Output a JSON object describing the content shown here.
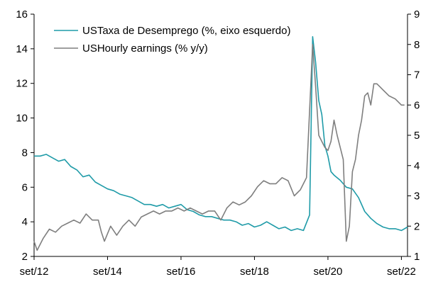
{
  "chart_data": {
    "type": "line",
    "legend_position": "top-left",
    "grid": false,
    "colors": {
      "unemployment": "#1F9BA8",
      "earnings": "#7F7F7F",
      "axis": "#000000"
    },
    "x_axis": {
      "range": [
        2012.667,
        2022.833
      ],
      "ticks": [
        {
          "value": 2012.667,
          "label": "set/12"
        },
        {
          "value": 2014.667,
          "label": "set/14"
        },
        {
          "value": 2016.667,
          "label": "set/16"
        },
        {
          "value": 2018.667,
          "label": "set/18"
        },
        {
          "value": 2020.667,
          "label": "set/20"
        },
        {
          "value": 2022.667,
          "label": "set/22"
        }
      ]
    },
    "y_left": {
      "range": [
        2,
        16
      ],
      "ticks": [
        {
          "value": 2,
          "label": "2"
        },
        {
          "value": 4,
          "label": "4"
        },
        {
          "value": 6,
          "label": "6"
        },
        {
          "value": 8,
          "label": "8"
        },
        {
          "value": 10,
          "label": "10"
        },
        {
          "value": 12,
          "label": "12"
        },
        {
          "value": 14,
          "label": "14"
        },
        {
          "value": 16,
          "label": "16"
        }
      ]
    },
    "y_right": {
      "range": [
        1,
        9
      ],
      "ticks": [
        {
          "value": 1,
          "label": "1"
        },
        {
          "value": 2,
          "label": "2"
        },
        {
          "value": 3,
          "label": "3"
        },
        {
          "value": 4,
          "label": "4"
        },
        {
          "value": 5,
          "label": "5"
        },
        {
          "value": 6,
          "label": "6"
        },
        {
          "value": 7,
          "label": "7"
        },
        {
          "value": 8,
          "label": "8"
        },
        {
          "value": 9,
          "label": "9"
        }
      ]
    },
    "series": [
      {
        "name": "USTaxa de Desemprego (%, eixo esquerdo)",
        "key": "unemployment",
        "axis": "left",
        "points": [
          [
            2012.667,
            7.8
          ],
          [
            2012.833,
            7.8
          ],
          [
            2013.0,
            7.9
          ],
          [
            2013.167,
            7.7
          ],
          [
            2013.333,
            7.5
          ],
          [
            2013.5,
            7.6
          ],
          [
            2013.667,
            7.2
          ],
          [
            2013.833,
            7.0
          ],
          [
            2014.0,
            6.6
          ],
          [
            2014.167,
            6.7
          ],
          [
            2014.333,
            6.3
          ],
          [
            2014.5,
            6.1
          ],
          [
            2014.667,
            5.9
          ],
          [
            2014.833,
            5.8
          ],
          [
            2015.0,
            5.6
          ],
          [
            2015.167,
            5.5
          ],
          [
            2015.333,
            5.4
          ],
          [
            2015.5,
            5.2
          ],
          [
            2015.667,
            5.0
          ],
          [
            2015.833,
            5.0
          ],
          [
            2016.0,
            4.9
          ],
          [
            2016.167,
            5.0
          ],
          [
            2016.333,
            4.8
          ],
          [
            2016.5,
            4.9
          ],
          [
            2016.667,
            5.0
          ],
          [
            2016.833,
            4.7
          ],
          [
            2017.0,
            4.6
          ],
          [
            2017.167,
            4.4
          ],
          [
            2017.333,
            4.3
          ],
          [
            2017.5,
            4.3
          ],
          [
            2017.667,
            4.2
          ],
          [
            2017.833,
            4.1
          ],
          [
            2018.0,
            4.1
          ],
          [
            2018.167,
            4.0
          ],
          [
            2018.333,
            3.8
          ],
          [
            2018.5,
            3.9
          ],
          [
            2018.667,
            3.7
          ],
          [
            2018.833,
            3.8
          ],
          [
            2019.0,
            4.0
          ],
          [
            2019.167,
            3.8
          ],
          [
            2019.333,
            3.6
          ],
          [
            2019.5,
            3.7
          ],
          [
            2019.667,
            3.5
          ],
          [
            2019.833,
            3.6
          ],
          [
            2020.0,
            3.5
          ],
          [
            2020.167,
            4.4
          ],
          [
            2020.25,
            14.7
          ],
          [
            2020.333,
            13.2
          ],
          [
            2020.417,
            11.0
          ],
          [
            2020.5,
            10.2
          ],
          [
            2020.583,
            8.4
          ],
          [
            2020.667,
            7.8
          ],
          [
            2020.75,
            6.9
          ],
          [
            2020.833,
            6.7
          ],
          [
            2021.0,
            6.4
          ],
          [
            2021.167,
            6.0
          ],
          [
            2021.333,
            5.9
          ],
          [
            2021.5,
            5.4
          ],
          [
            2021.667,
            4.6
          ],
          [
            2021.833,
            4.2
          ],
          [
            2022.0,
            3.9
          ],
          [
            2022.167,
            3.7
          ],
          [
            2022.333,
            3.6
          ],
          [
            2022.5,
            3.6
          ],
          [
            2022.667,
            3.5
          ],
          [
            2022.833,
            3.7
          ]
        ]
      },
      {
        "name": "USHourly earnings (% y/y)",
        "key": "earnings",
        "axis": "right",
        "points": [
          [
            2012.667,
            1.5
          ],
          [
            2012.75,
            1.2
          ],
          [
            2012.917,
            1.6
          ],
          [
            2013.083,
            1.9
          ],
          [
            2013.25,
            1.8
          ],
          [
            2013.417,
            2.0
          ],
          [
            2013.583,
            2.1
          ],
          [
            2013.75,
            2.2
          ],
          [
            2013.917,
            2.1
          ],
          [
            2014.083,
            2.4
          ],
          [
            2014.25,
            2.2
          ],
          [
            2014.417,
            2.2
          ],
          [
            2014.5,
            1.8
          ],
          [
            2014.583,
            1.5
          ],
          [
            2014.75,
            2.0
          ],
          [
            2014.917,
            1.7
          ],
          [
            2015.083,
            2.0
          ],
          [
            2015.25,
            2.2
          ],
          [
            2015.417,
            2.0
          ],
          [
            2015.583,
            2.3
          ],
          [
            2015.75,
            2.4
          ],
          [
            2015.917,
            2.5
          ],
          [
            2016.083,
            2.4
          ],
          [
            2016.25,
            2.5
          ],
          [
            2016.417,
            2.5
          ],
          [
            2016.583,
            2.6
          ],
          [
            2016.75,
            2.5
          ],
          [
            2016.917,
            2.6
          ],
          [
            2017.083,
            2.5
          ],
          [
            2017.25,
            2.4
          ],
          [
            2017.417,
            2.5
          ],
          [
            2017.583,
            2.5
          ],
          [
            2017.75,
            2.2
          ],
          [
            2017.917,
            2.6
          ],
          [
            2018.083,
            2.8
          ],
          [
            2018.25,
            2.7
          ],
          [
            2018.417,
            2.8
          ],
          [
            2018.583,
            3.0
          ],
          [
            2018.75,
            3.3
          ],
          [
            2018.917,
            3.5
          ],
          [
            2019.083,
            3.4
          ],
          [
            2019.25,
            3.4
          ],
          [
            2019.417,
            3.6
          ],
          [
            2019.583,
            3.5
          ],
          [
            2019.75,
            3.0
          ],
          [
            2019.917,
            3.2
          ],
          [
            2020.0,
            3.4
          ],
          [
            2020.083,
            3.6
          ],
          [
            2020.25,
            8.0
          ],
          [
            2020.333,
            6.6
          ],
          [
            2020.417,
            5.0
          ],
          [
            2020.5,
            4.8
          ],
          [
            2020.583,
            4.6
          ],
          [
            2020.667,
            4.5
          ],
          [
            2020.75,
            4.8
          ],
          [
            2020.833,
            5.5
          ],
          [
            2020.917,
            5.0
          ],
          [
            2021.0,
            4.6
          ],
          [
            2021.083,
            4.2
          ],
          [
            2021.167,
            1.5
          ],
          [
            2021.25,
            2.0
          ],
          [
            2021.333,
            3.8
          ],
          [
            2021.417,
            4.2
          ],
          [
            2021.5,
            5.0
          ],
          [
            2021.583,
            5.5
          ],
          [
            2021.667,
            6.3
          ],
          [
            2021.75,
            6.4
          ],
          [
            2021.833,
            6.0
          ],
          [
            2021.917,
            6.7
          ],
          [
            2022.0,
            6.7
          ],
          [
            2022.083,
            6.6
          ],
          [
            2022.167,
            6.5
          ],
          [
            2022.333,
            6.3
          ],
          [
            2022.5,
            6.2
          ],
          [
            2022.667,
            6.0
          ],
          [
            2022.75,
            6.0
          ]
        ]
      }
    ]
  }
}
